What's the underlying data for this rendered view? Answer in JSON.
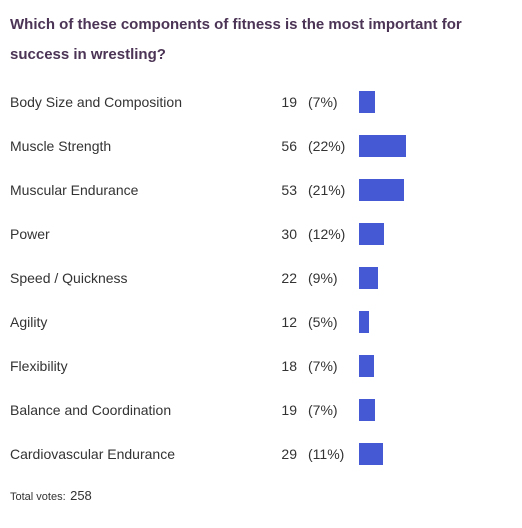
{
  "poll": {
    "question": "Which of these components of fitness is the most important for success in wrestling?",
    "bar_color": "#4659d4",
    "options": [
      {
        "label": "Body Size and Composition",
        "count": "19",
        "percent": "(7%)",
        "share": 0.074
      },
      {
        "label": "Muscle Strength",
        "count": "56",
        "percent": "(22%)",
        "share": 0.217
      },
      {
        "label": "Muscular Endurance",
        "count": "53",
        "percent": "(21%)",
        "share": 0.205
      },
      {
        "label": "Power",
        "count": "30",
        "percent": "(12%)",
        "share": 0.116
      },
      {
        "label": "Speed / Quickness",
        "count": "22",
        "percent": "(9%)",
        "share": 0.085
      },
      {
        "label": "Agility",
        "count": "12",
        "percent": "(5%)",
        "share": 0.047
      },
      {
        "label": "Flexibility",
        "count": "18",
        "percent": "(7%)",
        "share": 0.07
      },
      {
        "label": "Balance and Coordination",
        "count": "19",
        "percent": "(7%)",
        "share": 0.074
      },
      {
        "label": "Cardiovascular Endurance",
        "count": "29",
        "percent": "(11%)",
        "share": 0.112
      }
    ],
    "total_label": "Total votes:",
    "total_value": "258"
  }
}
